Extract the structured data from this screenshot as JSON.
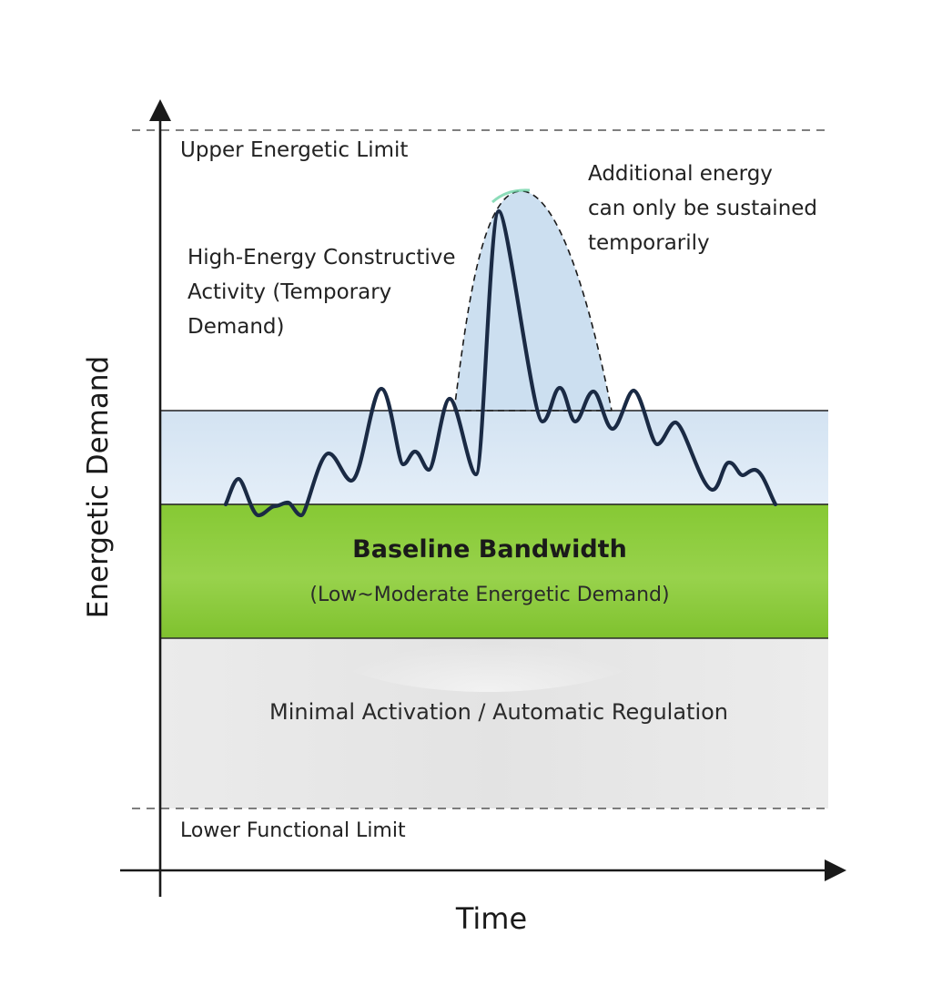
{
  "axes": {
    "x_label": "Time",
    "y_label": "Energetic Demand"
  },
  "limits": {
    "upper": "Upper Energetic Limit",
    "lower": "Lower Functional Limit"
  },
  "zones": {
    "baseline_title": "Baseline Bandwidth",
    "baseline_subtitle": "(Low~Moderate Energetic Demand)",
    "minimal": "Minimal Activation / Automatic Regulation"
  },
  "annotations": {
    "high_energy_lines": [
      "High-Energy Constructive",
      "Activity (Temporary",
      "Demand)"
    ],
    "additional_lines": [
      "Additional energy",
      "can only be sustained",
      "temporarily"
    ]
  },
  "colors": {
    "axis": "#1a1a1a",
    "demand_line": "#1a2a44",
    "upper_band": "#dbe8f4",
    "peak_fill": "#c4d9ec",
    "baseline_green": "#8ccb3c",
    "baseline_green_light": "#b8e08a",
    "minimal_gray": "#e8e8e8",
    "dashed_limit": "#555555"
  }
}
